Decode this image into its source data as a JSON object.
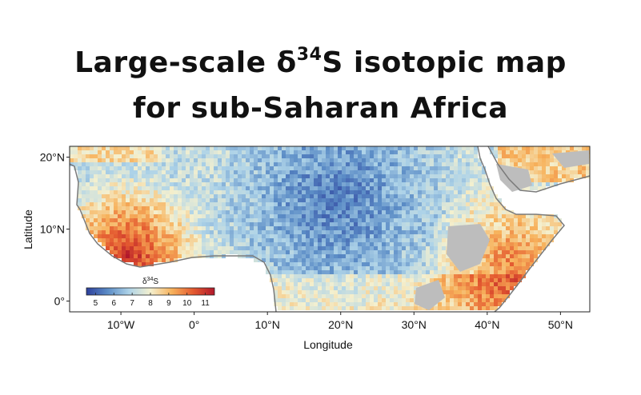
{
  "title": {
    "line1_prefix": "Large-scale δ",
    "line1_sup": "34",
    "line1_suffix": "S isotopic map",
    "line2": "for sub-Saharan Africa"
  },
  "axes": {
    "xlabel": "Longitude",
    "ylabel": "Latitude",
    "x_ticks": [
      "10°W",
      "0°",
      "10°N",
      "20°N",
      "30°N",
      "40°N",
      "50°N"
    ],
    "x_tick_values": [
      -10,
      0,
      10,
      20,
      30,
      40,
      50
    ],
    "y_ticks": [
      "20°N",
      "10°N",
      "0°"
    ],
    "y_tick_values": [
      20,
      10,
      0
    ],
    "xlim": [
      -17,
      54
    ],
    "ylim": [
      -1.5,
      21.5
    ]
  },
  "legend": {
    "title_prefix": "δ",
    "title_sup": "34",
    "title_suffix": "S",
    "ticks": [
      "5",
      "6",
      "7",
      "8",
      "9",
      "10",
      "11"
    ],
    "range": [
      4.5,
      11.5
    ],
    "colors": [
      "#2c3f9c",
      "#5b8cc6",
      "#aed3e8",
      "#f4f0cf",
      "#f7b25c",
      "#e45a30",
      "#b2182b"
    ]
  },
  "map_colors": {
    "no_data": "#bdbdbd",
    "coastline": "#7a7a7a",
    "ocean": "#ffffff"
  }
}
